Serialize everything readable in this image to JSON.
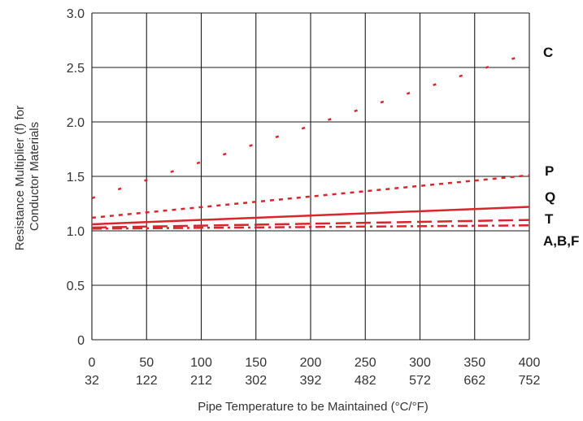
{
  "chart_data": {
    "type": "line",
    "xlabel": "Pipe Temperature to be Maintained (°C/°F)",
    "ylabel": [
      "Resistance Multiplier (f) for",
      "Conductor Materials"
    ],
    "x_ticks_c": [
      "0",
      "50",
      "100",
      "150",
      "200",
      "250",
      "300",
      "350",
      "400"
    ],
    "x_ticks_f": [
      "32",
      "122",
      "212",
      "302",
      "392",
      "482",
      "572",
      "662",
      "752"
    ],
    "y_ticks": [
      "0",
      "0.5",
      "1.0",
      "1.5",
      "2.0",
      "2.5",
      "3.0"
    ],
    "xlim": [
      0,
      400
    ],
    "ylim": [
      0,
      3.0
    ],
    "grid": true,
    "line_color": "#d7262c",
    "series": [
      {
        "name": "C",
        "style": "dotted-sparse",
        "x": [
          0,
          400
        ],
        "y": [
          1.3,
          2.63
        ]
      },
      {
        "name": "P",
        "style": "dotted",
        "x": [
          0,
          400
        ],
        "y": [
          1.12,
          1.51
        ]
      },
      {
        "name": "Q",
        "style": "solid",
        "x": [
          0,
          400
        ],
        "y": [
          1.06,
          1.22
        ]
      },
      {
        "name": "T",
        "style": "dashed",
        "x": [
          0,
          400
        ],
        "y": [
          1.03,
          1.1
        ]
      },
      {
        "name": "A,B,F",
        "style": "dash-dot",
        "x": [
          0,
          400
        ],
        "y": [
          1.02,
          1.05
        ]
      }
    ]
  }
}
